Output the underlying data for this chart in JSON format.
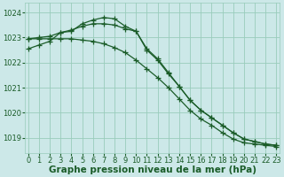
{
  "x": [
    0,
    1,
    2,
    3,
    4,
    5,
    6,
    7,
    8,
    9,
    10,
    11,
    12,
    13,
    14,
    15,
    16,
    17,
    18,
    19,
    20,
    21,
    22,
    23
  ],
  "line1_peak": [
    1022.55,
    1022.7,
    1022.85,
    1023.2,
    1023.25,
    1023.55,
    1023.7,
    1023.8,
    1023.75,
    1023.45,
    1023.25,
    1022.55,
    1022.15,
    1021.6,
    1021.05,
    1020.5,
    1020.1,
    1019.8,
    1019.5,
    1019.2,
    1018.95,
    1018.85,
    1018.75,
    1018.7
  ],
  "line2_hump": [
    1022.95,
    1023.0,
    1023.05,
    1023.2,
    1023.3,
    1023.45,
    1023.55,
    1023.55,
    1023.5,
    1023.35,
    1023.25,
    1022.5,
    1022.1,
    1021.55,
    1021.05,
    1020.5,
    1020.1,
    1019.8,
    1019.5,
    1019.2,
    1018.95,
    1018.85,
    1018.75,
    1018.7
  ],
  "line3_linear": [
    1022.95,
    1022.95,
    1022.95,
    1022.95,
    1022.95,
    1022.9,
    1022.85,
    1022.75,
    1022.6,
    1022.4,
    1022.1,
    1021.75,
    1021.4,
    1021.0,
    1020.55,
    1020.1,
    1019.75,
    1019.5,
    1019.2,
    1018.95,
    1018.8,
    1018.75,
    1018.7,
    1018.65
  ],
  "bg_color": "#cce8e8",
  "grid_color": "#99ccbb",
  "line_color": "#1a5c28",
  "xlabel": "Graphe pression niveau de la mer (hPa)",
  "ylim_min": 1018.4,
  "ylim_max": 1024.4,
  "yticks": [
    1019,
    1020,
    1021,
    1022,
    1023,
    1024
  ],
  "xticks": [
    0,
    1,
    2,
    3,
    4,
    5,
    6,
    7,
    8,
    9,
    10,
    11,
    12,
    13,
    14,
    15,
    16,
    17,
    18,
    19,
    20,
    21,
    22,
    23
  ],
  "marker": "+",
  "markersize": 4,
  "linewidth": 0.9,
  "xlabel_fontsize": 7.5,
  "tick_fontsize": 6
}
